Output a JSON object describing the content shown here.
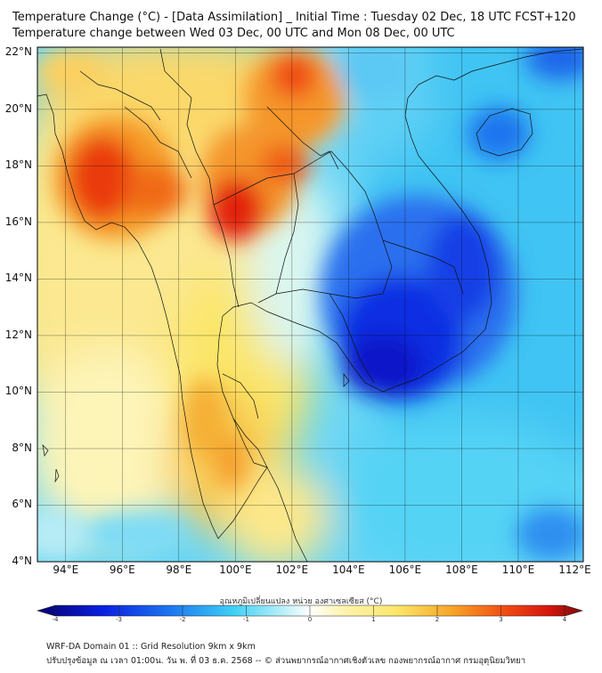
{
  "title": {
    "line1": "Temperature Change (°C) - [Data Assimilation] _ Initial Time : Tuesday 02 Dec, 18 UTC FCST+120",
    "line2": "Temperature change between Wed 03 Dec, 00 UTC and Mon 08 Dec, 00 UTC"
  },
  "map": {
    "lat_labels": [
      "22°N",
      "20°N",
      "18°N",
      "16°N",
      "14°N",
      "12°N",
      "10°N",
      "8°N",
      "6°N",
      "4°N"
    ],
    "lon_labels": [
      "94°E",
      "96°E",
      "98°E",
      "100°E",
      "102°E",
      "104°E",
      "106°E",
      "108°E",
      "110°E",
      "112°E"
    ],
    "lat_range": [
      4,
      22.2
    ],
    "lon_range": [
      93,
      112.3
    ],
    "grid": true
  },
  "colorbar": {
    "label": "อุณหภูมิเปลี่ยนแปลง หน่วย องศาเซลเซียส (°C)",
    "ticks": [
      "-4",
      "-3",
      "-2",
      "-1",
      "0",
      "1",
      "2",
      "3",
      "4"
    ],
    "range": [
      -4,
      4
    ],
    "colors": {
      "min": "#08006b",
      "deep_blue": "#0a1fe0",
      "blue": "#1e7bf0",
      "light_blue": "#3fd0f5",
      "pale": "#c6f3f8",
      "white": "#ffffff",
      "light_yellow": "#fdf4b0",
      "yellow": "#fbe66a",
      "orange": "#f7a628",
      "red_orange": "#f04a12",
      "red": "#d4140d",
      "max": "#7a0a0a"
    }
  },
  "footer": {
    "line1": "WRF-DA Domain 01 :: Grid Resolution 9km x 9km",
    "line2": "ปรับปรุงข้อมูล ณ เวลา 01:00น. วัน พ. ที่ 03 ธ.ค. 2568 -- © ส่วนพยากรณ์อากาศเชิงตัวเลข กองพยากรณ์อากาศ กรมอุตุนิยมวิทยา"
  }
}
